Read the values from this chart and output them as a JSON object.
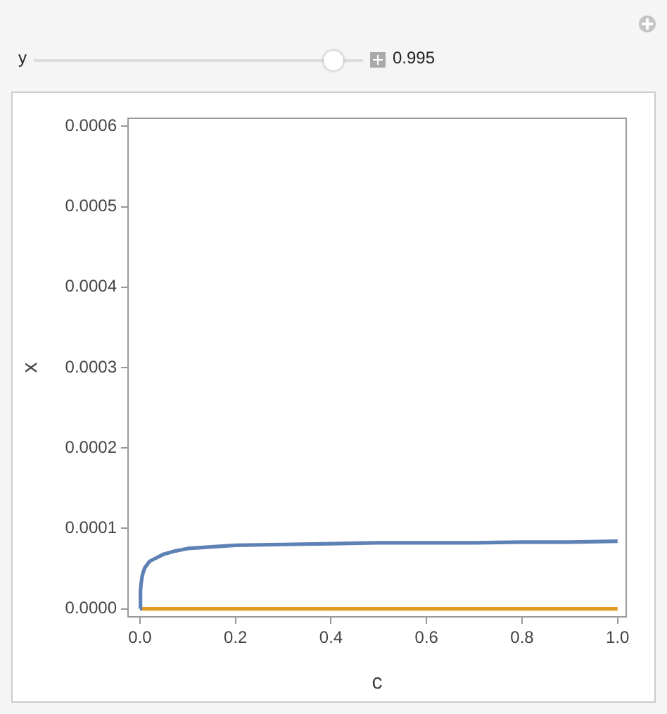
{
  "chart_data": {
    "type": "line",
    "xlabel": "c",
    "ylabel": "x",
    "annotations": [
      "y",
      "0.995"
    ],
    "xlim": [
      -0.025,
      1.018
    ],
    "ylim": [
      -1e-05,
      0.00061
    ],
    "xticks": [
      {
        "value": 0,
        "label": "0.0"
      },
      {
        "value": 0.2,
        "label": "0.2"
      },
      {
        "value": 0.4,
        "label": "0.4"
      },
      {
        "value": 0.6,
        "label": "0.6"
      },
      {
        "value": 0.8,
        "label": "0.8"
      },
      {
        "value": 1,
        "label": "1.0"
      }
    ],
    "yticks": [
      {
        "value": 0,
        "label": "0.0000"
      },
      {
        "value": 0.0001,
        "label": "0.0001"
      },
      {
        "value": 0.0002,
        "label": "0.0002"
      },
      {
        "value": 0.0003,
        "label": "0.0003"
      },
      {
        "value": 0.0004,
        "label": "0.0004"
      },
      {
        "value": 0.0005,
        "label": "0.0005"
      },
      {
        "value": 0.0006,
        "label": "0.0006"
      }
    ],
    "grid": false,
    "legend": false,
    "marker": "none",
    "line_style": "solid",
    "series": [
      {
        "color": "#5e81b5",
        "x": [
          0,
          0.001,
          0.002,
          0.005,
          0.01,
          0.02,
          0.03,
          0.05,
          0.075,
          0.1,
          0.15,
          0.2,
          0.3,
          0.4,
          0.5,
          0.6,
          0.7,
          0.8,
          0.9,
          1.0
        ],
        "values": [
          0,
          2.2e-05,
          3e-05,
          4.2e-05,
          5.1e-05,
          5.9e-05,
          6.2e-05,
          6.8e-05,
          7.2e-05,
          7.5e-05,
          7.7e-05,
          7.9e-05,
          8e-05,
          8.1e-05,
          8.2e-05,
          8.2e-05,
          8.2e-05,
          8.3e-05,
          8.3e-05,
          8.4e-05
        ]
      },
      {
        "color": "#e19c24",
        "x": [
          0,
          1
        ],
        "values": [
          0,
          0
        ]
      }
    ]
  }
}
